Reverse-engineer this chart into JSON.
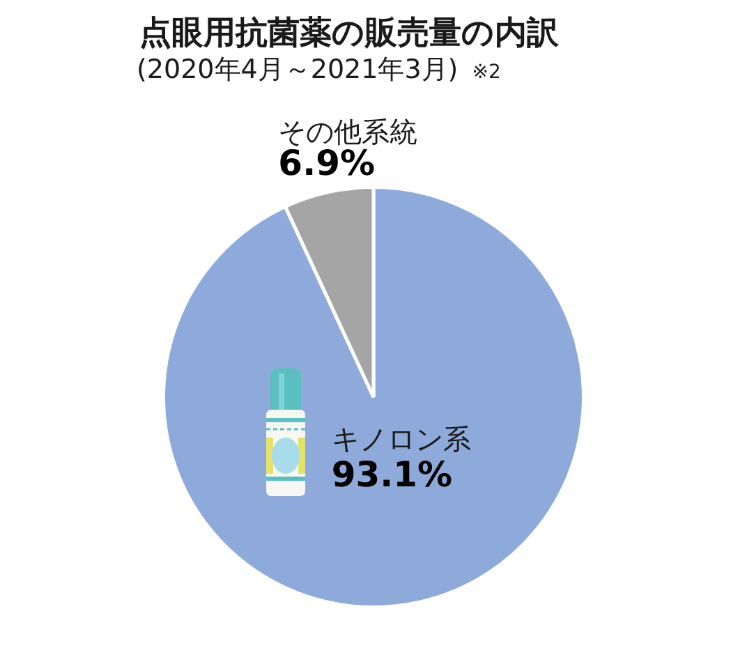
{
  "chart_data": {
    "type": "pie",
    "title": "点眼用抗菌薬の販売量の内訳",
    "subtitle": "(2020年4月～2021年3月)",
    "annotations": [
      "※2"
    ],
    "categories": [
      "キノロン系",
      "その他系統"
    ],
    "values": [
      93.1,
      6.9
    ],
    "colors": [
      "#8eaadb",
      "#a5a5a5"
    ],
    "value_labels": [
      "93.1%",
      "6.9%"
    ],
    "legend": false
  }
}
